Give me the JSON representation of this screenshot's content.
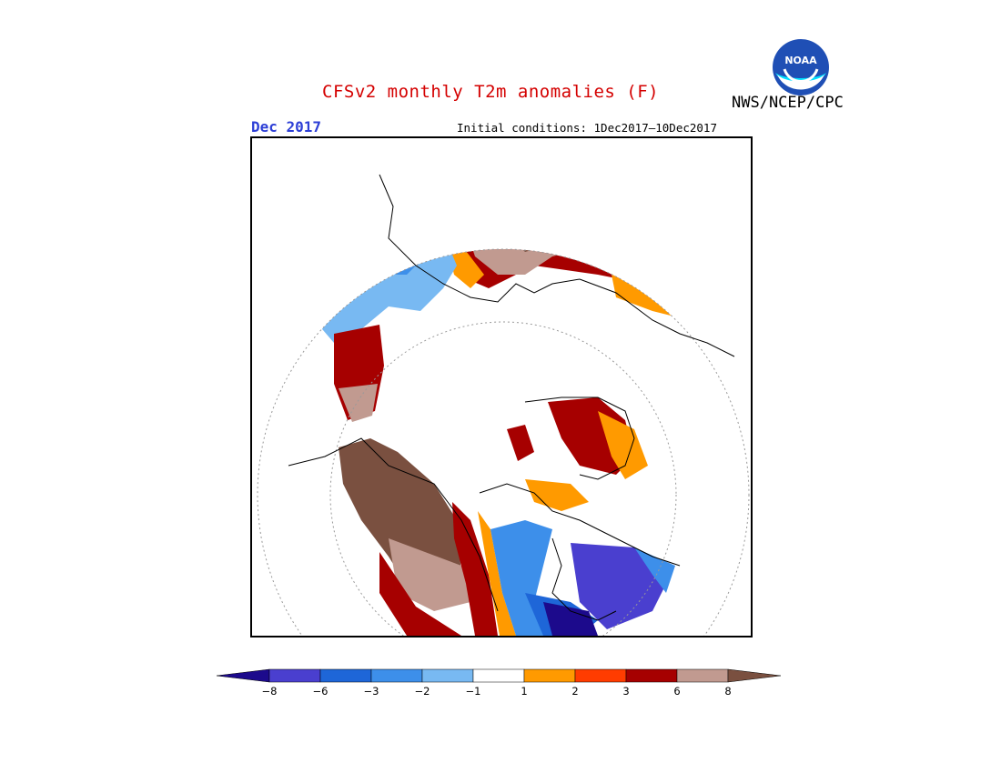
{
  "header": {
    "title": "CFSv2 monthly T2m anomalies (F)",
    "agency": "NWS/NCEP/CPC",
    "logo_text": "NOAA",
    "valid_month": "Dec 2017",
    "initial_conditions": "Initial conditions: 1Dec2017–10Dec2017"
  },
  "colorbar": {
    "tick_labels": [
      "−8",
      "−6",
      "−3",
      "−2",
      "−1",
      "1",
      "2",
      "3",
      "6",
      "8"
    ],
    "bins": [
      {
        "color": "#1c0a8c"
      },
      {
        "color": "#4a3fcf"
      },
      {
        "color": "#1e66d8"
      },
      {
        "color": "#3d8fea"
      },
      {
        "color": "#78b9f2"
      },
      {
        "color": "#ffffff"
      },
      {
        "color": "#ff9a00"
      },
      {
        "color": "#ff3c00"
      },
      {
        "color": "#a60000"
      },
      {
        "color": "#c19a90"
      },
      {
        "color": "#7a5040"
      }
    ]
  }
}
